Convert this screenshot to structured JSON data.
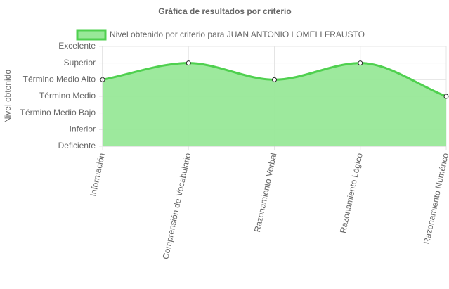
{
  "chart_data": {
    "type": "line",
    "title": "Gráfica de resultados por criterio",
    "y_label": "Nivel obtenido",
    "categories": [
      "Información",
      "Comprensión de Vocabulario",
      "Razonamiento Verbal",
      "Razonamiento Lógico",
      "Razonamiento Numérico"
    ],
    "series": [
      {
        "name": "Nivel obtenido por criterio para JUAN ANTONIO LOMELI FRAUSTO",
        "color": "#4fd04f",
        "fill": "#98e898",
        "values": [
          4,
          5,
          4,
          5,
          3
        ]
      }
    ],
    "ylim": [
      0,
      6
    ],
    "yticks": [
      {
        "value": 0,
        "label": "Deficiente"
      },
      {
        "value": 1,
        "label": "Inferior"
      },
      {
        "value": 2,
        "label": "Término Medio Bajo"
      },
      {
        "value": 3,
        "label": "Término Medio"
      },
      {
        "value": 4,
        "label": "Término Medio Alto"
      },
      {
        "value": 5,
        "label": "Superior"
      },
      {
        "value": 6,
        "label": "Excelente"
      }
    ],
    "grid": true
  }
}
